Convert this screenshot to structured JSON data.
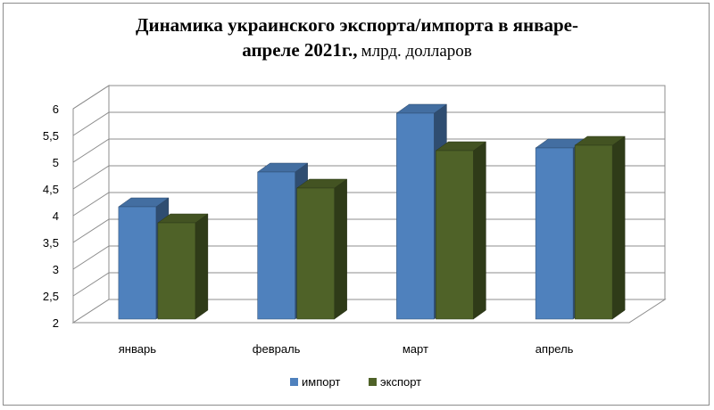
{
  "chart_data": {
    "type": "bar",
    "title_line1": "Динамика украинского экспорта/импорта в январе-",
    "title_line2_bold": "апреле 2021г.,",
    "title_line2_regular": "млрд. долларов",
    "categories": [
      "январь",
      "февраль",
      "март",
      "апрель"
    ],
    "series": [
      {
        "name": "импорт",
        "values": [
          4.2,
          4.85,
          5.95,
          5.3
        ],
        "color": "#4f81bd"
      },
      {
        "name": "экспорт",
        "values": [
          3.9,
          4.55,
          5.25,
          5.35
        ],
        "color": "#4f6228"
      }
    ],
    "yticks": [
      "2",
      "2,5",
      "3",
      "3,5",
      "4",
      "4,5",
      "5",
      "5,5",
      "6"
    ],
    "ylim": [
      2,
      6
    ],
    "grid": true,
    "legend": "bottom"
  }
}
